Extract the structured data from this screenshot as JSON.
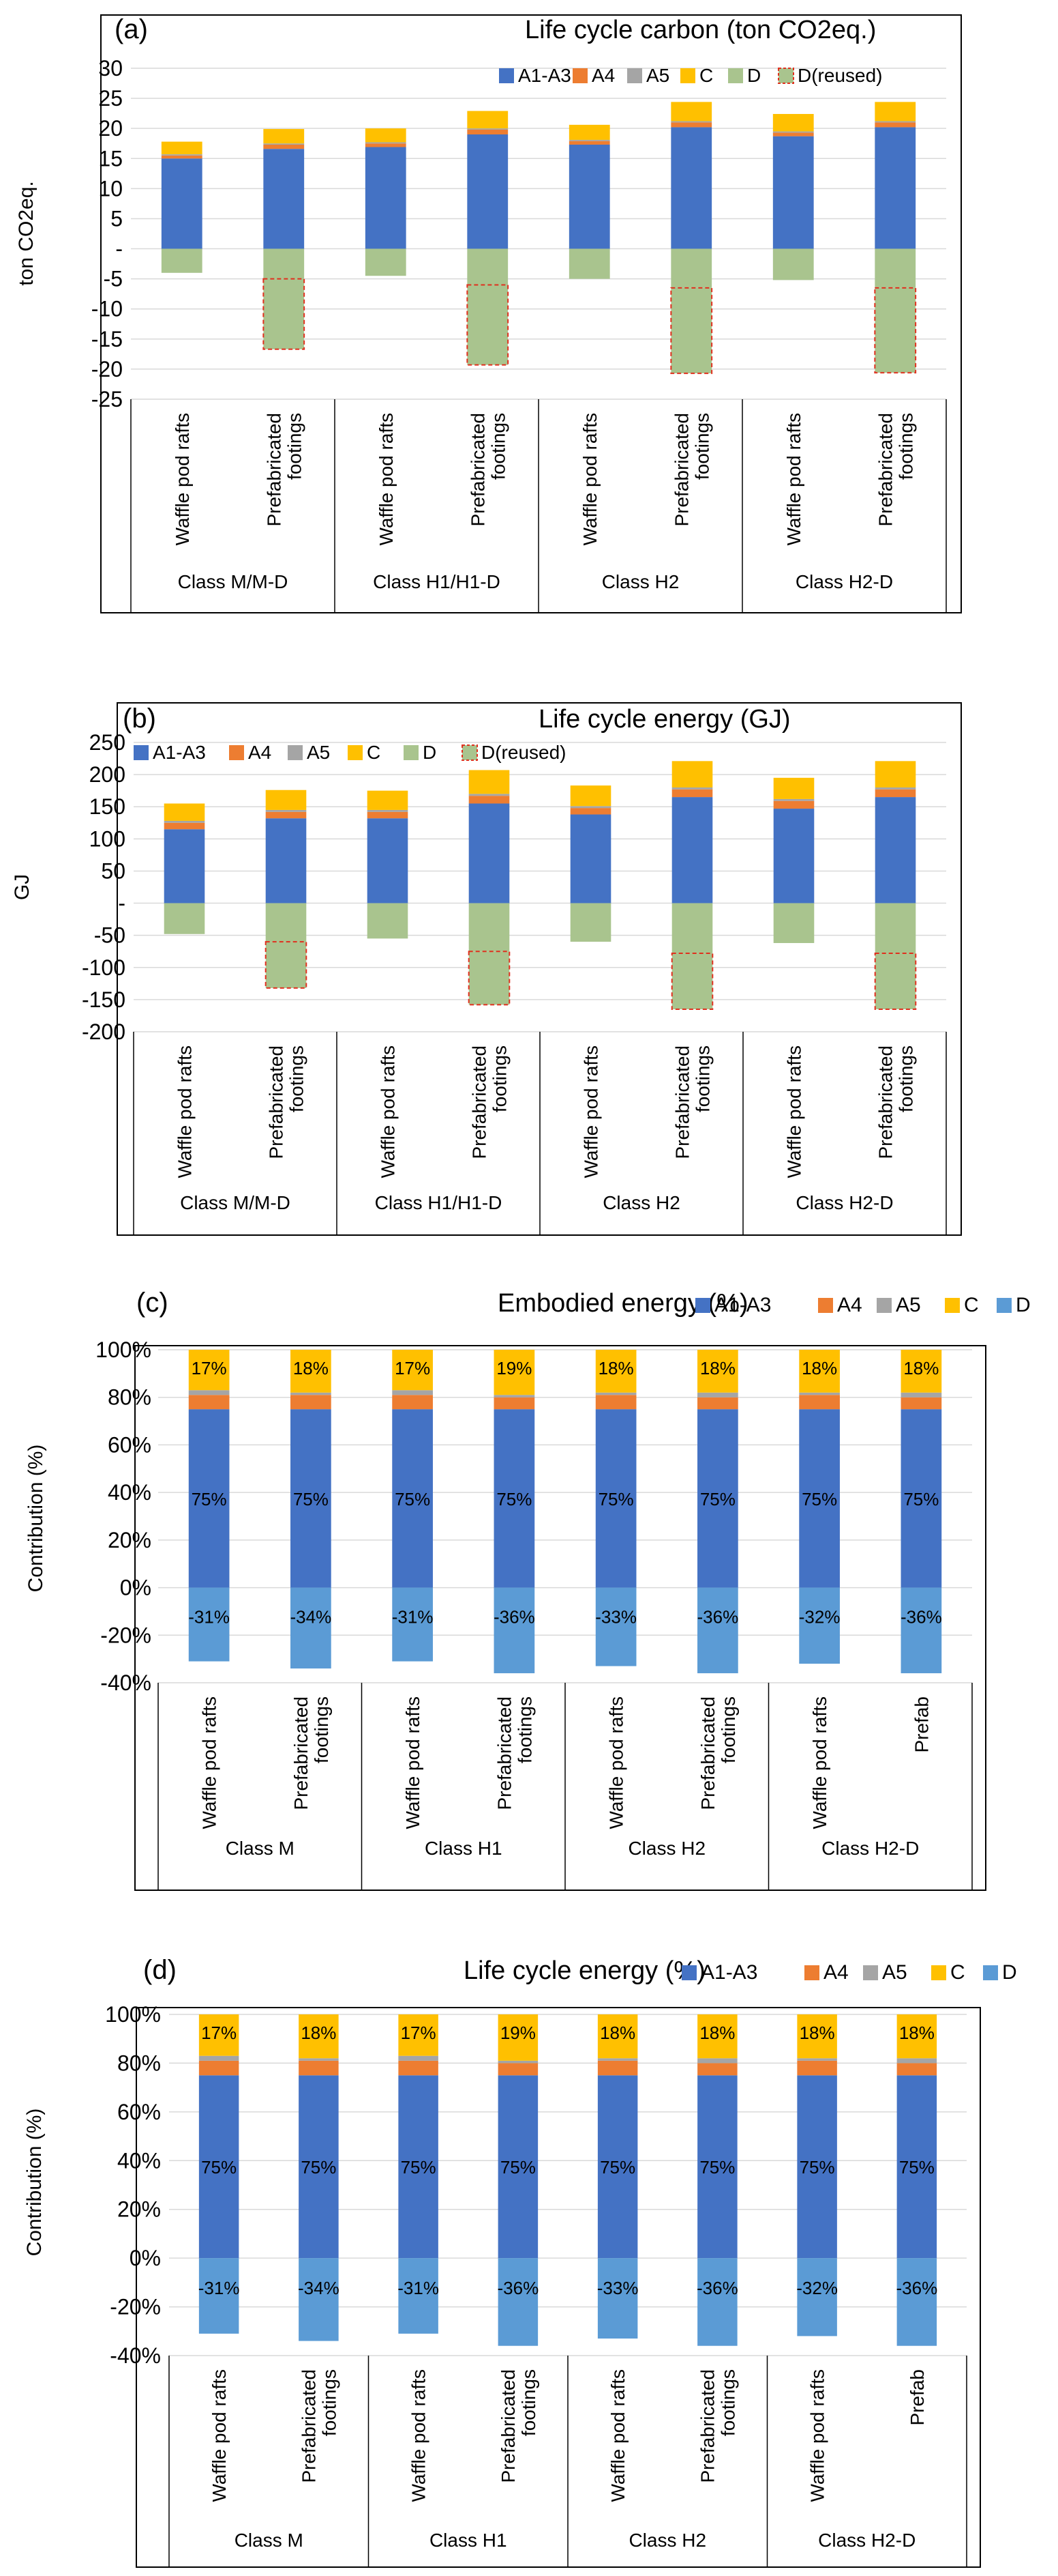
{
  "colors": {
    "A1-A3": "#4472C4",
    "A4": "#ED7D31",
    "A5": "#A5A5A5",
    "C": "#FFC000",
    "D": "#A9C48E",
    "D_pct": "#5B9BD5",
    "reused_border": "#E0301E",
    "grid": "#D9D9D9"
  },
  "chart_data": [
    {
      "type": "bar",
      "stacked": true,
      "panel": "(a)",
      "title": "Life cycle carbon (ton CO2eq.)",
      "ylabel": "ton CO2eq.",
      "ylim": [
        -25,
        30
      ],
      "yticks": [
        "30",
        "25",
        "20",
        "15",
        "10",
        "5",
        "-",
        "-5",
        "-10",
        "-15",
        "-20",
        "-25"
      ],
      "legend": [
        "A1-A3",
        "A4",
        "A5",
        "C",
        "D",
        "D(reused)"
      ],
      "legend_position": "top-right",
      "categories": [
        "Waffle pod rafts",
        "Prefabricated footings",
        "Waffle pod rafts",
        "Prefabricated footings",
        "Waffle pod rafts",
        "Prefabricated footings",
        "Waffle pod rafts",
        "Prefabricated footings"
      ],
      "groups": [
        "Class M/M-D",
        "Class H1/H1-D",
        "Class H2",
        "Class H2-D"
      ],
      "series": [
        {
          "name": "A1-A3",
          "values": [
            15,
            16.6,
            16.9,
            19,
            17.3,
            20.2,
            18.7,
            20.2
          ]
        },
        {
          "name": "A4",
          "values": [
            0.5,
            0.7,
            0.6,
            0.8,
            0.6,
            0.8,
            0.6,
            0.8
          ]
        },
        {
          "name": "A5",
          "values": [
            0.2,
            0.2,
            0.2,
            0.2,
            0.2,
            0.2,
            0.2,
            0.2
          ]
        },
        {
          "name": "C",
          "values": [
            2.1,
            2.4,
            2.3,
            2.9,
            2.5,
            3.2,
            2.9,
            3.2
          ]
        },
        {
          "name": "D",
          "values": [
            -4,
            -5,
            -4.5,
            -6,
            -5,
            -6.5,
            -5.2,
            -6.5
          ]
        },
        {
          "name": "D(reused)",
          "values": [
            0,
            -11.7,
            0,
            -13.3,
            0,
            -14.2,
            0,
            -14.1
          ]
        }
      ]
    },
    {
      "type": "bar",
      "stacked": true,
      "panel": "(b)",
      "title": "Life cycle energy (GJ)",
      "ylabel": "GJ",
      "ylim": [
        -200,
        250
      ],
      "yticks": [
        "250",
        "200",
        "150",
        "100",
        "50",
        "-",
        "-50",
        "-100",
        "-150",
        "-200"
      ],
      "legend": [
        "A1-A3",
        "A4",
        "A5",
        "C",
        "D",
        "D(reused)"
      ],
      "legend_position": "top-left",
      "categories": [
        "Waffle pod rafts",
        "Prefabricated footings",
        "Waffle pod rafts",
        "Prefabricated footings",
        "Waffle pod rafts",
        "Prefabricated footings",
        "Waffle pod rafts",
        "Prefabricated footings"
      ],
      "groups": [
        "Class M/M-D",
        "Class H1/H1-D",
        "Class H2",
        "Class H2-D"
      ],
      "series": [
        {
          "name": "A1-A3",
          "values": [
            115,
            132,
            132,
            155,
            138,
            165,
            147,
            165
          ]
        },
        {
          "name": "A4",
          "values": [
            10,
            10,
            10,
            12,
            10,
            12,
            12,
            12
          ]
        },
        {
          "name": "A5",
          "values": [
            3,
            3,
            3,
            3,
            3,
            3,
            3,
            3
          ]
        },
        {
          "name": "C",
          "values": [
            27,
            31,
            30,
            37,
            32,
            41,
            33,
            41
          ]
        },
        {
          "name": "D",
          "values": [
            -48,
            -60,
            -55,
            -75,
            -60,
            -78,
            -62,
            -78
          ]
        },
        {
          "name": "D(reused)",
          "values": [
            0,
            -72,
            0,
            -83,
            0,
            -87,
            0,
            -87
          ]
        }
      ]
    },
    {
      "type": "bar",
      "stacked": true,
      "panel": "(c)",
      "title": "Embodied energy (%)",
      "ylabel": "Contribution (%)",
      "ylim": [
        -40,
        100
      ],
      "yticks": [
        "100%",
        "80%",
        "60%",
        "40%",
        "20%",
        "0%",
        "-20%",
        "-40%"
      ],
      "legend": [
        "A1-A3",
        "A4",
        "A5",
        "C",
        "D"
      ],
      "legend_position": "top-right",
      "categories": [
        "Waffle pod rafts",
        "Prefabricated footings",
        "Waffle pod rafts",
        "Prefabricated footings",
        "Waffle pod rafts",
        "Prefabricated footings",
        "Waffle pod rafts",
        "Prefab"
      ],
      "groups": [
        "Class M",
        "Class H1",
        "Class H2",
        "Class H2-D"
      ],
      "series": [
        {
          "name": "A1-A3",
          "values": [
            75,
            75,
            75,
            75,
            75,
            75,
            75,
            75
          ]
        },
        {
          "name": "A4",
          "values": [
            6,
            6,
            6,
            5,
            6,
            5,
            6,
            5
          ]
        },
        {
          "name": "A5",
          "values": [
            2,
            1,
            2,
            1,
            1,
            2,
            1,
            2
          ]
        },
        {
          "name": "C",
          "values": [
            17,
            18,
            17,
            19,
            18,
            18,
            18,
            18
          ]
        },
        {
          "name": "D",
          "values": [
            -31,
            -34,
            -31,
            -36,
            -33,
            -36,
            -32,
            -36
          ]
        }
      ],
      "labels": {
        "C": [
          "17%",
          "18%",
          "17%",
          "19%",
          "18%",
          "18%",
          "18%",
          "18%"
        ],
        "A1-A3": [
          "75%",
          "75%",
          "75%",
          "75%",
          "75%",
          "75%",
          "75%",
          "75%"
        ],
        "D": [
          "-31%",
          "-34%",
          "-31%",
          "-36%",
          "-33%",
          "-36%",
          "-32%",
          "-36%"
        ]
      }
    },
    {
      "type": "bar",
      "stacked": true,
      "panel": "(d)",
      "title": "Life cycle energy (%)",
      "ylabel": "Contribution (%)",
      "ylim": [
        -40,
        100
      ],
      "yticks": [
        "100%",
        "80%",
        "60%",
        "40%",
        "20%",
        "0%",
        "-20%",
        "-40%"
      ],
      "legend": [
        "A1-A3",
        "A4",
        "A5",
        "C",
        "D"
      ],
      "legend_position": "top-right",
      "categories": [
        "Waffle pod rafts",
        "Prefabricated footings",
        "Waffle pod rafts",
        "Prefabricated footings",
        "Waffle pod rafts",
        "Prefabricated footings",
        "Waffle pod rafts",
        "Prefab"
      ],
      "groups": [
        "Class M",
        "Class H1",
        "Class H2",
        "Class H2-D"
      ],
      "series": [
        {
          "name": "A1-A3",
          "values": [
            75,
            75,
            75,
            75,
            75,
            75,
            75,
            75
          ]
        },
        {
          "name": "A4",
          "values": [
            6,
            6,
            6,
            5,
            6,
            5,
            6,
            5
          ]
        },
        {
          "name": "A5",
          "values": [
            2,
            1,
            2,
            1,
            1,
            2,
            1,
            2
          ]
        },
        {
          "name": "C",
          "values": [
            17,
            18,
            17,
            19,
            18,
            18,
            18,
            18
          ]
        },
        {
          "name": "D",
          "values": [
            -31,
            -34,
            -31,
            -36,
            -33,
            -36,
            -32,
            -36
          ]
        }
      ],
      "labels": {
        "C": [
          "17%",
          "18%",
          "17%",
          "19%",
          "18%",
          "18%",
          "18%",
          "18%"
        ],
        "A1-A3": [
          "75%",
          "75%",
          "75%",
          "75%",
          "75%",
          "75%",
          "75%",
          "75%"
        ],
        "D": [
          "-31%",
          "-34%",
          "-31%",
          "-36%",
          "-33%",
          "-36%",
          "-32%",
          "-36%"
        ]
      }
    }
  ]
}
